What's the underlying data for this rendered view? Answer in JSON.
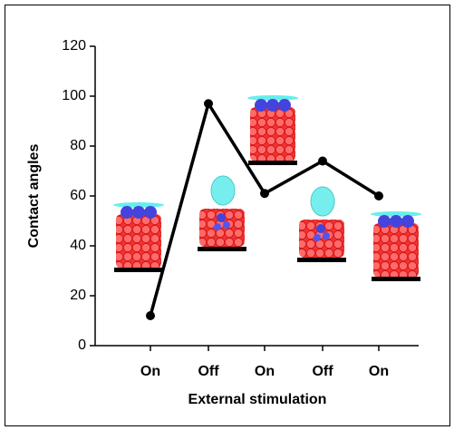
{
  "chart_data": {
    "type": "line",
    "x_label": "External stimulation",
    "y_label": "Contact angles",
    "categories": [
      "On",
      "Off",
      "On",
      "Off",
      "On"
    ],
    "values": [
      12,
      97,
      61,
      74,
      60
    ],
    "color": "#000000",
    "ylim": [
      0,
      120
    ],
    "yticks": [
      0,
      20,
      40,
      60,
      80,
      100,
      120
    ]
  }
}
